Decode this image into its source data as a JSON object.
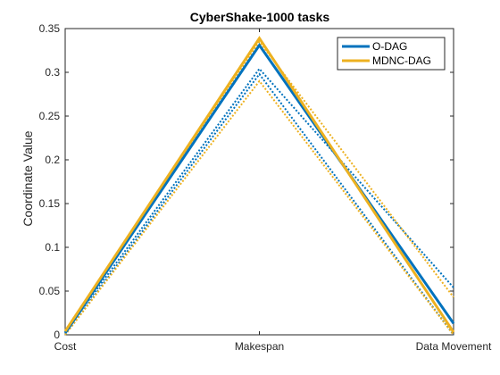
{
  "chart_data": {
    "type": "line",
    "title": "CyberShake-1000 tasks",
    "xlabel": "",
    "ylabel": "Coordinate Value",
    "categories": [
      "Cost",
      "Makespan",
      "Data Movement"
    ],
    "ylim": [
      0,
      0.35
    ],
    "yticks": [
      "0",
      "0.05",
      "0.1",
      "0.15",
      "0.2",
      "0.25",
      "0.3",
      "0.35"
    ],
    "grid": false,
    "legend_position": "top-right",
    "legend": [
      "O-DAG",
      "MDNC-DAG"
    ],
    "series": [
      {
        "name": "O-DAG",
        "color": "#0072BD",
        "style": "solid",
        "values": [
          0.002,
          0.331,
          0.013
        ]
      },
      {
        "color": "#0072BD",
        "style": "dotted",
        "values": [
          0.003,
          0.304,
          0.054
        ]
      },
      {
        "color": "#0072BD",
        "style": "dotted",
        "values": [
          0.0,
          0.298,
          0.0
        ]
      },
      {
        "name": "MDNC-DAG",
        "color": "#EDB120",
        "style": "solid",
        "values": [
          0.004,
          0.339,
          0.003
        ]
      },
      {
        "color": "#EDB120",
        "style": "dotted",
        "values": [
          0.005,
          0.335,
          0.043
        ]
      },
      {
        "color": "#EDB120",
        "style": "dotted",
        "values": [
          0.0,
          0.29,
          0.0
        ]
      }
    ]
  }
}
